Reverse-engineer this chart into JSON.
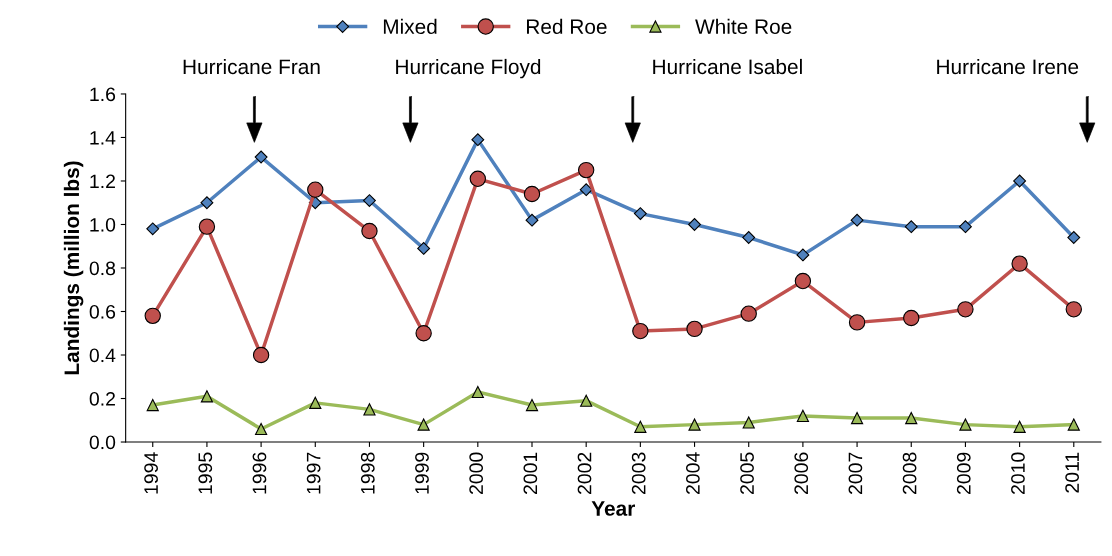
{
  "chart_data": {
    "type": "line",
    "xlabel": "Year",
    "ylabel": "Landings (million lbs)",
    "categories": [
      "1994",
      "1995",
      "1996",
      "1997",
      "1998",
      "1999",
      "2000",
      "2001",
      "2002",
      "2003",
      "2004",
      "2005",
      "2006",
      "2007",
      "2008",
      "2009",
      "2010",
      "2011"
    ],
    "series": [
      {
        "name": "Mixed",
        "color": "#4f81bd",
        "marker": "diamond",
        "values": [
          0.98,
          1.1,
          1.31,
          1.1,
          1.11,
          0.89,
          1.39,
          1.02,
          1.16,
          1.05,
          1.0,
          0.94,
          0.86,
          1.02,
          0.99,
          0.99,
          1.2,
          0.94
        ]
      },
      {
        "name": "Red Roe",
        "color": "#c0504d",
        "marker": "circle",
        "values": [
          0.58,
          0.99,
          0.4,
          1.16,
          0.97,
          0.5,
          1.21,
          1.14,
          1.25,
          0.51,
          0.52,
          0.59,
          0.74,
          0.55,
          0.57,
          0.61,
          0.82,
          0.61
        ]
      },
      {
        "name": "White Roe",
        "color": "#9bbb59",
        "marker": "triangle",
        "values": [
          0.17,
          0.21,
          0.06,
          0.18,
          0.15,
          0.08,
          0.23,
          0.17,
          0.19,
          0.07,
          0.08,
          0.09,
          0.12,
          0.11,
          0.11,
          0.08,
          0.07,
          0.08
        ]
      }
    ],
    "ylim": [
      0,
      1.6
    ],
    "yticks": [
      {
        "value": 0,
        "label": "0.0"
      },
      {
        "value": 0.2,
        "label": "0.2"
      },
      {
        "value": 0.4,
        "label": "0.4"
      },
      {
        "value": 0.6,
        "label": "0.6"
      },
      {
        "value": 0.8,
        "label": "0.8"
      },
      {
        "value": 1.0,
        "label": "1.0"
      },
      {
        "value": 1.2,
        "label": "1.2"
      },
      {
        "value": 1.4,
        "label": "1.4"
      },
      {
        "value": 1.6,
        "label": "1.6"
      }
    ],
    "annotations": [
      "Hurricane Fran",
      "Hurricane Floyd",
      "Hurricane Isabel",
      "Hurricane Irene"
    ],
    "legend": "top",
    "grid": false,
    "line_style": "solid"
  }
}
